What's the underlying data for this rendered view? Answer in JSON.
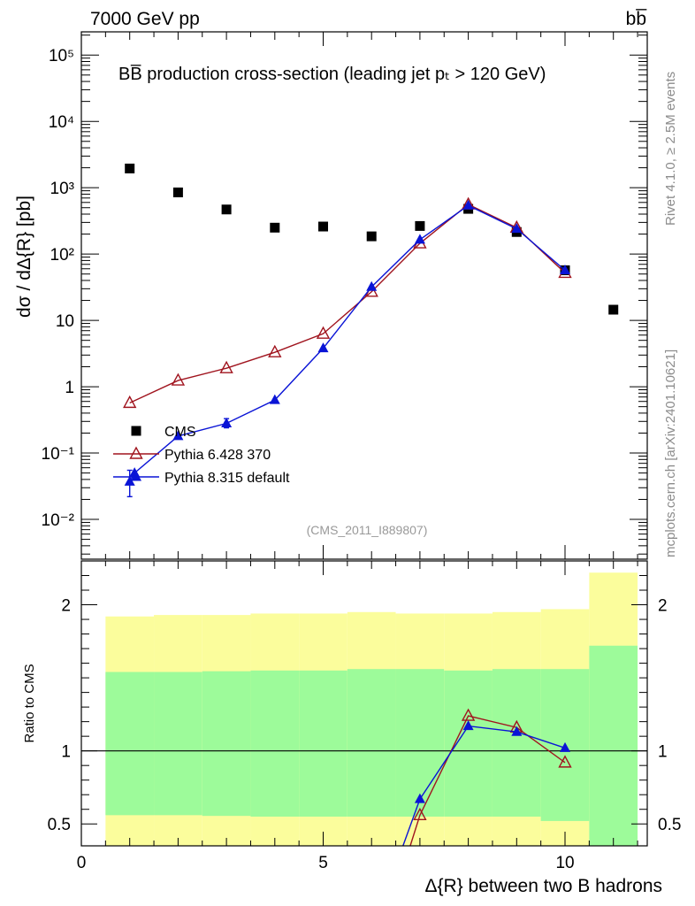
{
  "header": {
    "energy_label": "7000 GeV pp",
    "process_label": "bb̅"
  },
  "side_labels": {
    "rivet": "Rivet 4.1.0, ≥ 2.5M events",
    "mcplots": "mcplots.cern.ch [arXiv:2401.10621]"
  },
  "colors": {
    "cms": "#000000",
    "pythia6": "#a0141e",
    "pythia8": "#0a14d6",
    "band_inner": "#9dfb9a",
    "band_outer": "#fbfd9c"
  },
  "chart_data": [
    {
      "type": "line",
      "scale": "log",
      "title": "BB̅ production cross-section (leading jet pₜ > 120 GeV)",
      "ylabel": "dσ / dΔ{R} [pb]",
      "analysis_id": "(CMS_2011_I889807)",
      "xlim": [
        0,
        11.7
      ],
      "ylim_exp": [
        -2.6,
        5.35
      ],
      "y_ticks": [
        {
          "exp": -2,
          "label": "10⁻²"
        },
        {
          "exp": -1,
          "label": "10⁻¹"
        },
        {
          "exp": 0,
          "label": "1"
        },
        {
          "exp": 1,
          "label": "10"
        },
        {
          "exp": 2,
          "label": "10²"
        },
        {
          "exp": 3,
          "label": "10³"
        },
        {
          "exp": 4,
          "label": "10⁴"
        },
        {
          "exp": 5,
          "label": "10⁵"
        }
      ],
      "legend": [
        {
          "name": "CMS",
          "marker": "square"
        },
        {
          "name": "Pythia 6.428 370",
          "marker": "open-triangle"
        },
        {
          "name": "Pythia 8.315 default",
          "marker": "filled-triangle"
        }
      ],
      "series": [
        {
          "name": "CMS",
          "x": [
            1,
            2,
            3,
            4,
            5,
            6,
            7,
            8,
            9,
            10,
            11
          ],
          "y": [
            1950,
            850,
            470,
            250,
            260,
            185,
            265,
            480,
            215,
            57,
            14.5
          ]
        },
        {
          "name": "Pythia 6.428 370",
          "x": [
            1,
            2,
            3,
            4,
            5,
            6,
            7,
            8,
            9,
            10
          ],
          "y": [
            0.57,
            1.24,
            1.9,
            3.3,
            6.3,
            27,
            145,
            560,
            250,
            52
          ]
        },
        {
          "name": "Pythia 8.315 default",
          "x": [
            1,
            1.1,
            2,
            3,
            4,
            5,
            6,
            7,
            8,
            9,
            10
          ],
          "y": [
            0.037,
            0.05,
            0.18,
            0.28,
            0.63,
            3.8,
            32,
            165,
            540,
            240,
            57
          ],
          "errors": [
            {
              "x": 1,
              "y_low": 0.022,
              "y_high": 0.055
            },
            {
              "x": 3,
              "y_low": 0.24,
              "y_high": 0.33
            }
          ]
        }
      ]
    },
    {
      "type": "line",
      "ylabel": "Ratio to CMS",
      "xlabel": "Δ{R} between two B hadrons",
      "xlim": [
        0,
        11.7
      ],
      "ylim": [
        0.35,
        2.3
      ],
      "x_ticks": [
        0,
        5,
        10
      ],
      "y_ticks": [
        0.5,
        1,
        2
      ],
      "reference": 1,
      "bands": [
        {
          "x0": 0.5,
          "x1": 1.5,
          "inner": [
            0.56,
            1.54
          ],
          "outer": [
            0.35,
            1.92
          ]
        },
        {
          "x0": 1.5,
          "x1": 2.5,
          "inner": [
            0.56,
            1.54
          ],
          "outer": [
            0.35,
            1.93
          ]
        },
        {
          "x0": 2.5,
          "x1": 3.5,
          "inner": [
            0.555,
            1.545
          ],
          "outer": [
            0.35,
            1.93
          ]
        },
        {
          "x0": 3.5,
          "x1": 4.5,
          "inner": [
            0.55,
            1.55
          ],
          "outer": [
            0.35,
            1.94
          ]
        },
        {
          "x0": 4.5,
          "x1": 5.5,
          "inner": [
            0.55,
            1.55
          ],
          "outer": [
            0.35,
            1.94
          ]
        },
        {
          "x0": 5.5,
          "x1": 6.5,
          "inner": [
            0.55,
            1.56
          ],
          "outer": [
            0.35,
            1.95
          ]
        },
        {
          "x0": 6.5,
          "x1": 7.5,
          "inner": [
            0.55,
            1.56
          ],
          "outer": [
            0.35,
            1.94
          ]
        },
        {
          "x0": 7.5,
          "x1": 8.5,
          "inner": [
            0.55,
            1.55
          ],
          "outer": [
            0.35,
            1.94
          ]
        },
        {
          "x0": 8.5,
          "x1": 9.5,
          "inner": [
            0.55,
            1.56
          ],
          "outer": [
            0.35,
            1.95
          ]
        },
        {
          "x0": 9.5,
          "x1": 10.5,
          "inner": [
            0.52,
            1.56
          ],
          "outer": [
            0.35,
            1.97
          ]
        },
        {
          "x0": 10.5,
          "x1": 11.5,
          "inner": [
            0.35,
            1.72
          ],
          "outer": [
            0.35,
            2.22
          ]
        }
      ],
      "series": [
        {
          "name": "Pythia 6.428 370",
          "x": [
            6.8,
            7,
            8,
            9,
            10
          ],
          "y": [
            0.35,
            0.56,
            1.24,
            1.16,
            0.92
          ]
        },
        {
          "name": "Pythia 8.315 default",
          "x": [
            6.65,
            7,
            8,
            9,
            10
          ],
          "y": [
            0.35,
            0.67,
            1.17,
            1.13,
            1.02
          ]
        }
      ]
    }
  ]
}
